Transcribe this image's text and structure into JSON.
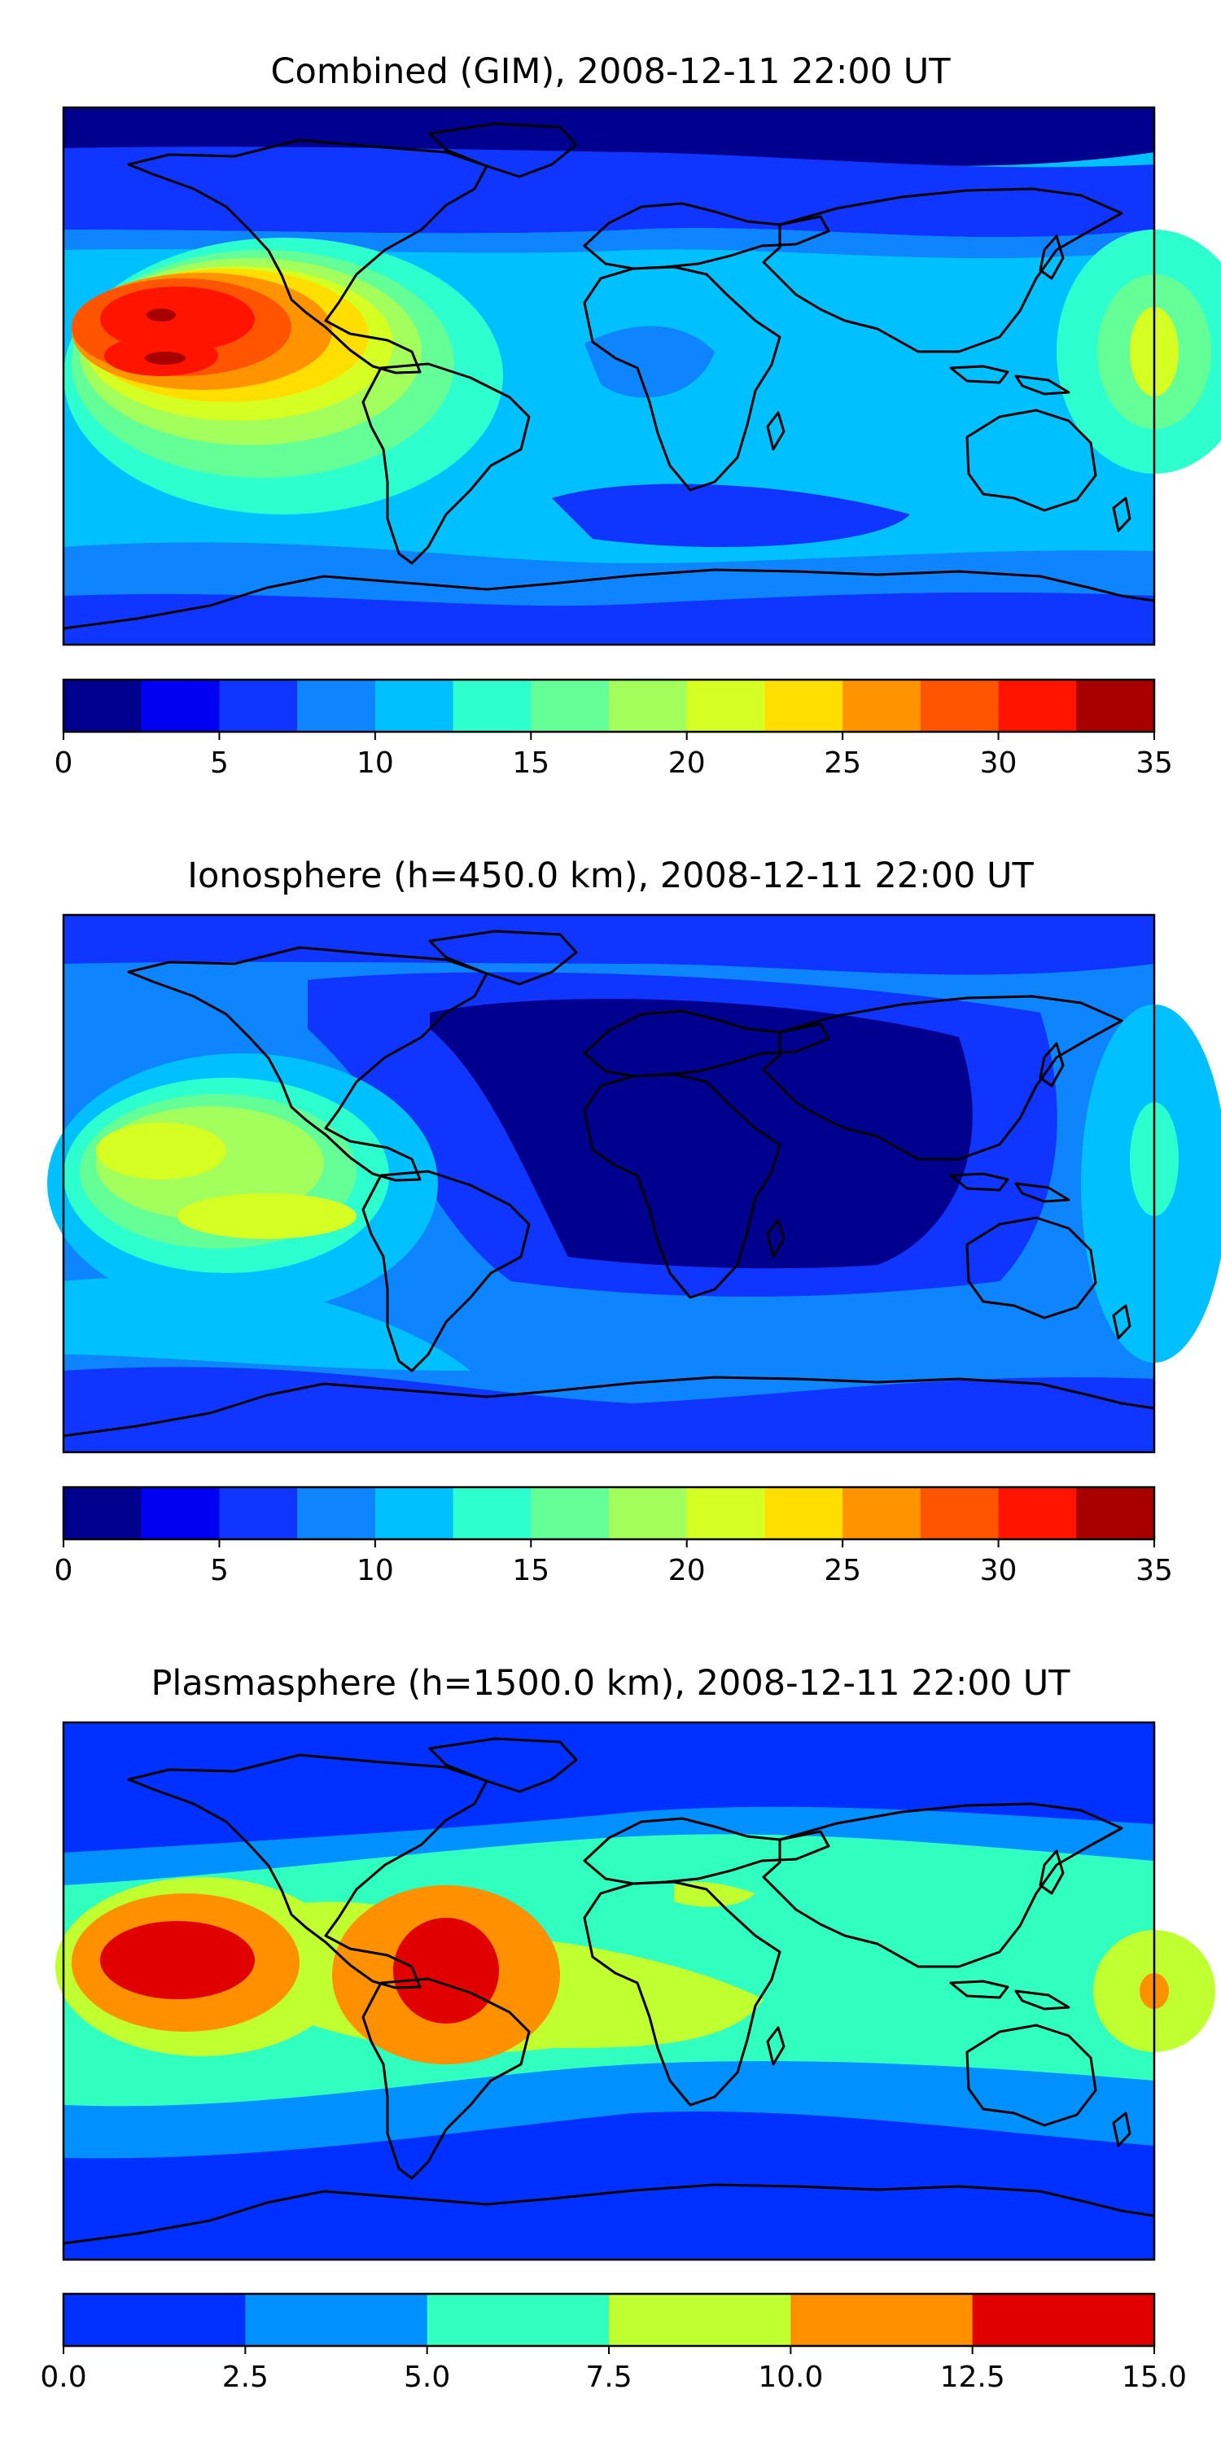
{
  "panels": [
    {
      "id": "combined",
      "title": "Combined (GIM), 2008-12-11 22:00 UT",
      "colorbar": {
        "ticks": [
          "0",
          "5",
          "10",
          "15",
          "20",
          "25",
          "30",
          "35"
        ],
        "colors": [
          "#00008f",
          "#0000f3",
          "#0f35ff",
          "#0f84ff",
          "#00c0ff",
          "#2dffcf",
          "#65ff98",
          "#a3ff5c",
          "#d6ff24",
          "#ffde00",
          "#ff9400",
          "#ff5400",
          "#ff1400",
          "#a80000"
        ]
      }
    },
    {
      "id": "ionosphere",
      "title": "Ionosphere  (h=450.0 km), 2008-12-11 22:00 UT",
      "colorbar": {
        "ticks": [
          "0",
          "5",
          "10",
          "15",
          "20",
          "25",
          "30",
          "35"
        ],
        "colors": [
          "#00008f",
          "#0000f3",
          "#0f35ff",
          "#0f84ff",
          "#00c0ff",
          "#2dffcf",
          "#65ff98",
          "#a3ff5c",
          "#d6ff24",
          "#ffde00",
          "#ff9400",
          "#ff5400",
          "#ff1400",
          "#a80000"
        ]
      }
    },
    {
      "id": "plasmasphere",
      "title": "Plasmasphere (h=1500.0 km), 2008-12-11 22:00 UT",
      "colorbar": {
        "ticks": [
          "0.0",
          "2.5",
          "5.0",
          "7.5",
          "10.0",
          "12.5",
          "15.0"
        ],
        "colors": [
          "#0030ff",
          "#0090ff",
          "#30ffc0",
          "#c0ff30",
          "#ff9000",
          "#e00000"
        ]
      }
    }
  ]
}
